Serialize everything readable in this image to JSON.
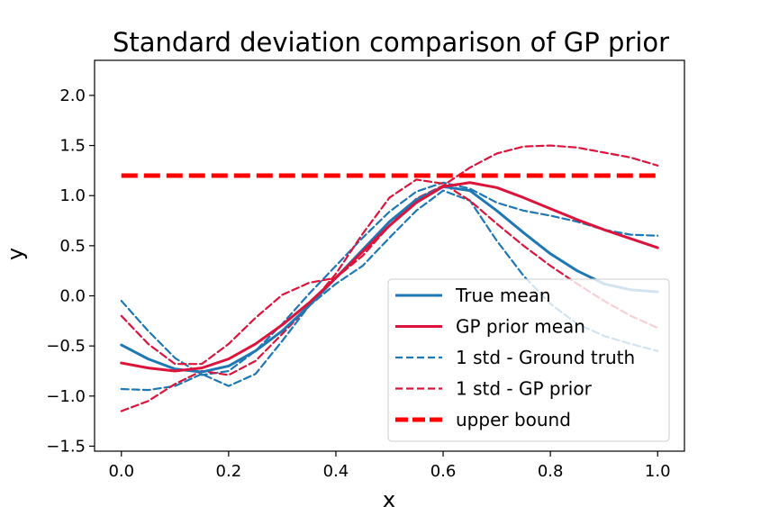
{
  "chart_data": {
    "type": "line",
    "title": "Standard deviation comparison of GP prior",
    "xlabel": "x",
    "ylabel": "y",
    "xlim": [
      -0.05,
      1.05
    ],
    "ylim": [
      -1.55,
      2.35
    ],
    "xticks": [
      0.0,
      0.2,
      0.4,
      0.6,
      0.8,
      1.0
    ],
    "xtick_labels": [
      "0.0",
      "0.2",
      "0.4",
      "0.6",
      "0.8",
      "1.0"
    ],
    "yticks": [
      -1.5,
      -1.0,
      -0.5,
      0.0,
      0.5,
      1.0,
      1.5,
      2.0
    ],
    "ytick_labels": [
      "−1.5",
      "−1.0",
      "−0.5",
      "0.0",
      "0.5",
      "1.0",
      "1.5",
      "2.0"
    ],
    "grid": false,
    "legend_position": "lower-right",
    "series": [
      {
        "name": "True mean",
        "color": "#1f77b4",
        "style": "solid",
        "x": [
          0.0,
          0.05,
          0.1,
          0.15,
          0.2,
          0.25,
          0.3,
          0.35,
          0.4,
          0.45,
          0.5,
          0.55,
          0.6,
          0.65,
          0.7,
          0.75,
          0.8,
          0.85,
          0.9,
          0.95,
          1.0
        ],
        "y": [
          -0.49,
          -0.63,
          -0.73,
          -0.76,
          -0.7,
          -0.55,
          -0.35,
          -0.1,
          0.18,
          0.46,
          0.74,
          0.96,
          1.09,
          1.05,
          0.85,
          0.63,
          0.42,
          0.25,
          0.12,
          0.06,
          0.04
        ]
      },
      {
        "name": "GP prior mean",
        "color": "#dc143c",
        "style": "solid",
        "x": [
          0.0,
          0.05,
          0.1,
          0.15,
          0.2,
          0.25,
          0.3,
          0.35,
          0.4,
          0.45,
          0.5,
          0.55,
          0.6,
          0.65,
          0.7,
          0.75,
          0.8,
          0.85,
          0.9,
          0.95,
          1.0
        ],
        "y": [
          -0.67,
          -0.72,
          -0.75,
          -0.72,
          -0.63,
          -0.48,
          -0.29,
          -0.07,
          0.18,
          0.44,
          0.7,
          0.93,
          1.09,
          1.13,
          1.08,
          0.98,
          0.87,
          0.76,
          0.66,
          0.57,
          0.48
        ]
      },
      {
        "name": "1 std - Ground truth",
        "color": "#1f77b4",
        "style": "dashed",
        "x": [
          0.0,
          0.05,
          0.1,
          0.15,
          0.2,
          0.25,
          0.3,
          0.35,
          0.4,
          0.45,
          0.5,
          0.55,
          0.6,
          0.65,
          0.7,
          0.75,
          0.8,
          0.85,
          0.9,
          0.95,
          1.0
        ],
        "y": [
          -0.05,
          -0.35,
          -0.62,
          -0.79,
          -0.75,
          -0.55,
          -0.28,
          0.02,
          0.3,
          0.58,
          0.84,
          1.04,
          1.13,
          1.07,
          0.93,
          0.85,
          0.8,
          0.74,
          0.66,
          0.61,
          0.6
        ]
      },
      {
        "name": "1 std - Ground truth",
        "color": "#1f77b4",
        "style": "dashed",
        "x": [
          0.0,
          0.05,
          0.1,
          0.15,
          0.2,
          0.25,
          0.3,
          0.35,
          0.4,
          0.45,
          0.5,
          0.55,
          0.6,
          0.65,
          0.7,
          0.75,
          0.8,
          0.85,
          0.9,
          0.95,
          1.0
        ],
        "y": [
          -0.93,
          -0.94,
          -0.9,
          -0.78,
          -0.9,
          -0.78,
          -0.45,
          -0.1,
          0.12,
          0.3,
          0.58,
          0.85,
          1.05,
          0.95,
          0.55,
          0.2,
          -0.08,
          -0.28,
          -0.4,
          -0.48,
          -0.55
        ]
      },
      {
        "name": "1 std - GP prior",
        "color": "#dc143c",
        "style": "dashed",
        "x": [
          0.0,
          0.05,
          0.1,
          0.15,
          0.2,
          0.25,
          0.3,
          0.35,
          0.4,
          0.45,
          0.5,
          0.55,
          0.6,
          0.65,
          0.7,
          0.75,
          0.8,
          0.85,
          0.9,
          0.95,
          1.0
        ],
        "y": [
          -0.2,
          -0.48,
          -0.68,
          -0.68,
          -0.48,
          -0.22,
          0.01,
          0.13,
          0.18,
          0.4,
          0.7,
          0.97,
          1.1,
          1.28,
          1.42,
          1.49,
          1.5,
          1.48,
          1.43,
          1.38,
          1.3
        ]
      },
      {
        "name": "1 std - GP prior",
        "color": "#dc143c",
        "style": "dashed",
        "x": [
          0.0,
          0.05,
          0.1,
          0.15,
          0.2,
          0.25,
          0.3,
          0.35,
          0.4,
          0.45,
          0.5,
          0.55,
          0.6,
          0.65,
          0.7,
          0.75,
          0.8,
          0.85,
          0.9,
          0.95,
          1.0
        ],
        "y": [
          -1.15,
          -1.05,
          -0.88,
          -0.75,
          -0.79,
          -0.65,
          -0.38,
          -0.1,
          0.22,
          0.62,
          0.98,
          1.16,
          1.12,
          0.95,
          0.72,
          0.5,
          0.3,
          0.12,
          -0.05,
          -0.2,
          -0.32
        ]
      },
      {
        "name": "upper bound",
        "color": "#ff0000",
        "style": "thick-dashed",
        "x": [
          0.0,
          1.0
        ],
        "y": [
          1.2,
          1.2
        ]
      }
    ],
    "legend": [
      {
        "label": "True mean",
        "color": "#1f77b4",
        "style": "solid"
      },
      {
        "label": "GP prior mean",
        "color": "#dc143c",
        "style": "solid"
      },
      {
        "label": "1 std - Ground truth",
        "color": "#1f77b4",
        "style": "dashed"
      },
      {
        "label": "1 std - GP prior",
        "color": "#dc143c",
        "style": "dashed"
      },
      {
        "label": "upper bound",
        "color": "#ff0000",
        "style": "thick-dashed"
      }
    ]
  }
}
